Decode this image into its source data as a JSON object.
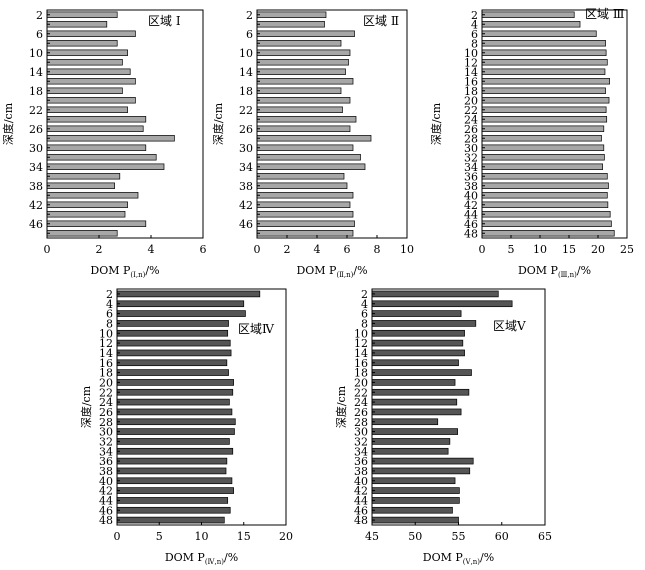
{
  "chart_data": [
    {
      "type": "bar",
      "orientation": "horizontal",
      "region_label": "区域 I",
      "ylabel": "深度/cm",
      "xlabel": "DOM P",
      "xlabel_sub": "(Ⅰ,n)",
      "xlabel_unit": "/%",
      "x_ticks": [
        "0",
        "2",
        "4",
        "6"
      ],
      "xlim": [
        0,
        6
      ],
      "bar_color": "#a7a7a7",
      "depths": [
        2,
        4,
        6,
        8,
        10,
        12,
        14,
        16,
        18,
        20,
        22,
        24,
        26,
        28,
        30,
        32,
        34,
        36,
        38,
        40,
        42,
        44,
        46,
        48
      ],
      "depth_tick_labels": [
        "2",
        "6",
        "10",
        "14",
        "18",
        "22",
        "26",
        "30",
        "34",
        "38",
        "42",
        "46"
      ],
      "values": [
        2.7,
        2.3,
        3.4,
        2.7,
        3.1,
        2.9,
        3.2,
        3.4,
        2.9,
        3.4,
        3.1,
        3.8,
        3.7,
        4.9,
        3.8,
        4.2,
        4.5,
        2.8,
        2.6,
        3.5,
        3.1,
        3.0,
        3.8,
        2.7
      ]
    },
    {
      "type": "bar",
      "orientation": "horizontal",
      "region_label": "区域 Ⅱ",
      "ylabel": "深度/cm",
      "xlabel": "DOM P",
      "xlabel_sub": "(Ⅱ,n)",
      "xlabel_unit": "/%",
      "x_ticks": [
        "0",
        "2",
        "4",
        "6",
        "8",
        "10"
      ],
      "xlim": [
        0,
        10
      ],
      "bar_color": "#a7a7a7",
      "depths": [
        2,
        4,
        6,
        8,
        10,
        12,
        14,
        16,
        18,
        20,
        22,
        24,
        26,
        28,
        30,
        32,
        34,
        36,
        38,
        40,
        42,
        44,
        46,
        48
      ],
      "depth_tick_labels": [
        "2",
        "6",
        "10",
        "14",
        "18",
        "22",
        "26",
        "30",
        "34",
        "38",
        "42",
        "46"
      ],
      "values": [
        4.6,
        4.5,
        6.5,
        5.6,
        6.2,
        6.1,
        5.9,
        6.4,
        5.6,
        6.2,
        5.7,
        6.6,
        6.2,
        7.6,
        6.4,
        6.9,
        7.2,
        5.8,
        6.0,
        6.4,
        6.2,
        6.4,
        6.5,
        6.4
      ]
    },
    {
      "type": "bar",
      "orientation": "horizontal",
      "region_label": "区域 Ⅲ",
      "ylabel": "深度/cm",
      "xlabel": "DOM P",
      "xlabel_sub": "(Ⅲ,n)",
      "xlabel_unit": "/%",
      "x_ticks": [
        "0",
        "5",
        "10",
        "15",
        "20",
        "25"
      ],
      "xlim": [
        0,
        25
      ],
      "bar_color": "#a7a7a7",
      "depths": [
        2,
        4,
        6,
        8,
        10,
        12,
        14,
        16,
        18,
        20,
        22,
        24,
        26,
        28,
        30,
        32,
        34,
        36,
        38,
        40,
        42,
        44,
        46,
        48
      ],
      "depth_tick_labels": [
        "2",
        "4",
        "6",
        "8",
        "10",
        "12",
        "14",
        "16",
        "18",
        "20",
        "22",
        "24",
        "26",
        "28",
        "30",
        "32",
        "34",
        "36",
        "38",
        "40",
        "42",
        "44",
        "46",
        "48"
      ],
      "values": [
        15.9,
        16.9,
        19.7,
        21.3,
        21.4,
        21.6,
        21.2,
        22.0,
        21.3,
        21.9,
        21.4,
        21.5,
        21.0,
        20.6,
        21.0,
        21.1,
        20.8,
        21.6,
        21.8,
        21.6,
        21.7,
        22.1,
        22.3,
        22.8
      ]
    },
    {
      "type": "bar",
      "orientation": "horizontal",
      "region_label": "区域Ⅳ",
      "ylabel": "深度/cm",
      "xlabel": "DOM P",
      "xlabel_sub": "(Ⅳ,n)",
      "xlabel_unit": "/%",
      "x_ticks": [
        "0",
        "5",
        "10",
        "15",
        "20"
      ],
      "xlim": [
        0,
        20
      ],
      "bar_color": "#555555",
      "depths": [
        2,
        4,
        6,
        8,
        10,
        12,
        14,
        16,
        18,
        20,
        22,
        24,
        26,
        28,
        30,
        32,
        34,
        36,
        38,
        40,
        42,
        44,
        46,
        48
      ],
      "depth_tick_labels": [
        "2",
        "4",
        "6",
        "8",
        "10",
        "12",
        "14",
        "16",
        "18",
        "20",
        "22",
        "24",
        "26",
        "28",
        "30",
        "32",
        "34",
        "36",
        "38",
        "40",
        "42",
        "44",
        "46",
        "48"
      ],
      "values": [
        16.9,
        15.0,
        15.2,
        13.2,
        13.1,
        13.4,
        13.5,
        13.0,
        13.2,
        13.8,
        13.7,
        13.3,
        13.6,
        14.0,
        13.9,
        13.3,
        13.7,
        13.0,
        12.9,
        13.6,
        13.8,
        13.1,
        13.4,
        12.7
      ]
    },
    {
      "type": "bar",
      "orientation": "horizontal",
      "region_label": "区域Ⅴ",
      "ylabel": "深度/cm",
      "xlabel": "DOM P",
      "xlabel_sub": "(Ⅴ,n)",
      "xlabel_unit": "/%",
      "x_ticks": [
        "45",
        "50",
        "55",
        "60",
        "65"
      ],
      "xlim": [
        45,
        65
      ],
      "bar_color": "#555555",
      "depths": [
        2,
        4,
        6,
        8,
        10,
        12,
        14,
        16,
        18,
        20,
        22,
        24,
        26,
        28,
        30,
        32,
        34,
        36,
        38,
        40,
        42,
        44,
        46,
        48
      ],
      "depth_tick_labels": [
        "2",
        "4",
        "6",
        "8",
        "10",
        "12",
        "14",
        "16",
        "18",
        "20",
        "22",
        "24",
        "26",
        "28",
        "30",
        "32",
        "34",
        "36",
        "38",
        "40",
        "42",
        "44",
        "46",
        "48"
      ],
      "values": [
        59.6,
        61.2,
        55.3,
        57.0,
        55.7,
        55.5,
        55.7,
        55.0,
        56.5,
        54.6,
        56.2,
        54.8,
        55.3,
        52.6,
        54.9,
        54.0,
        53.8,
        56.7,
        56.3,
        54.6,
        55.1,
        55.1,
        54.3,
        55.0
      ]
    }
  ]
}
